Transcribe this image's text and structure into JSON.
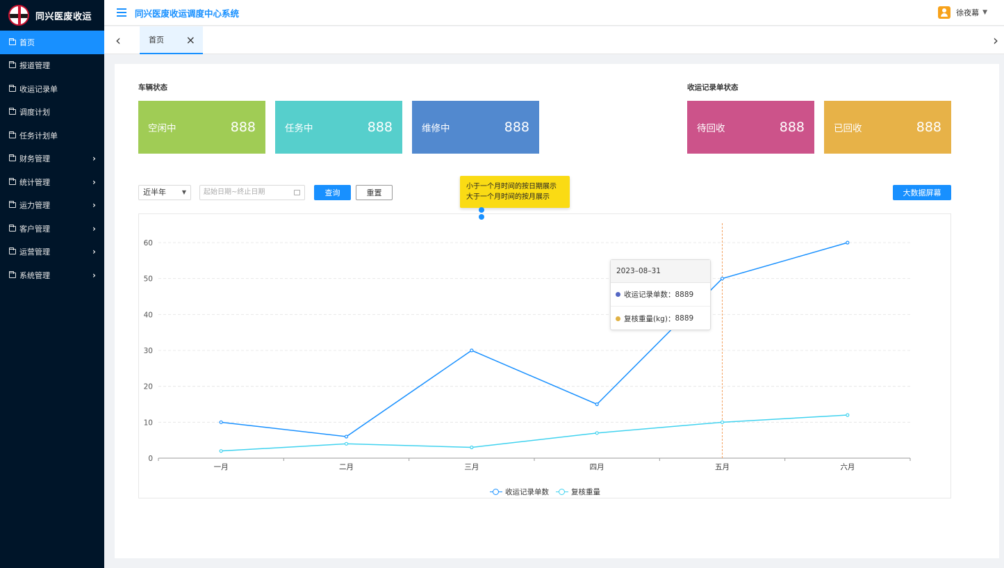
{
  "app": {
    "name": "同兴医废收运",
    "title": "同兴医废收运调度中心系统"
  },
  "user": {
    "name": "徐夜幕"
  },
  "sidebar": {
    "items": [
      {
        "label": "首页",
        "active": true,
        "has_children": false
      },
      {
        "label": "报道管理",
        "has_children": false
      },
      {
        "label": "收运记录单",
        "has_children": false
      },
      {
        "label": "调度计划",
        "has_children": false
      },
      {
        "label": "任务计划单",
        "has_children": false
      },
      {
        "label": "财务管理",
        "has_children": true
      },
      {
        "label": "统计管理",
        "has_children": true
      },
      {
        "label": "运力管理",
        "has_children": true
      },
      {
        "label": "客户管理",
        "has_children": true
      },
      {
        "label": "运营管理",
        "has_children": true
      },
      {
        "label": "系统管理",
        "has_children": true
      }
    ]
  },
  "tabs": [
    {
      "label": "首页",
      "active": true
    }
  ],
  "vehicle_status": {
    "title": "车辆状态",
    "cards": [
      {
        "label": "空闲中",
        "value": "888",
        "color": "#a0cc55"
      },
      {
        "label": "任务中",
        "value": "888",
        "color": "#56cfcc"
      },
      {
        "label": "维修中",
        "value": "888",
        "color": "#5289cf"
      }
    ]
  },
  "record_status": {
    "title": "收运记录单状态",
    "cards": [
      {
        "label": "待回收",
        "value": "888",
        "color": "#cc538a"
      },
      {
        "label": "已回收",
        "value": "888",
        "color": "#e7b248"
      }
    ]
  },
  "filters": {
    "period": "近半年",
    "date_placeholder": "起始日期~终止日期",
    "query_label": "查询",
    "reset_label": "重置",
    "bigscreen_label": "大数据屏幕"
  },
  "note": {
    "line1": "小于一个月时间的按日期展示",
    "line2": "大于一个月时间的按月展示"
  },
  "tooltip": {
    "date": "2023–08–31",
    "rows": [
      {
        "label": "收运记录单数：",
        "value": "8889",
        "color": "#5467c4"
      },
      {
        "label": "复核重量(kg)：",
        "value": "8889",
        "color": "#e0b143"
      }
    ]
  },
  "chart_data": {
    "type": "line",
    "categories": [
      "一月",
      "二月",
      "三月",
      "四月",
      "五月",
      "六月"
    ],
    "ylim": [
      0,
      60
    ],
    "yticks": [
      0,
      10,
      20,
      30,
      40,
      50,
      60
    ],
    "grid": true,
    "legend": "bottom",
    "highlight_category": "五月",
    "series": [
      {
        "name": "收运记录单数",
        "values": [
          10,
          6,
          30,
          15,
          50,
          60
        ],
        "color": "#1890ff"
      },
      {
        "name": "复核重量",
        "values": [
          2,
          4,
          3,
          7,
          10,
          12
        ],
        "color": "#3fd2ef"
      }
    ]
  }
}
